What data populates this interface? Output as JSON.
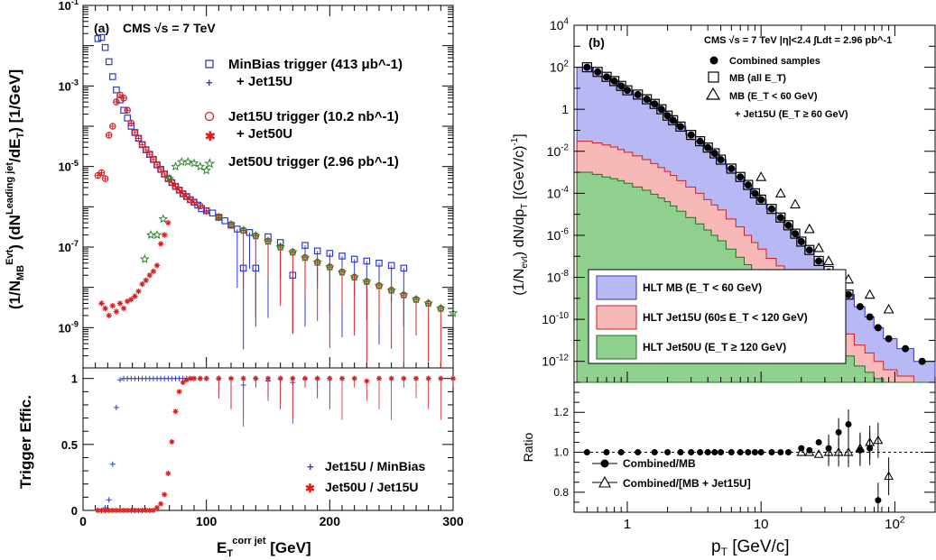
{
  "chart_data": [
    {
      "id": "a",
      "type": "scatter",
      "panel_label": "(a)",
      "experiment_label": "CMS  √s = 7 TeV",
      "xlabel": "E_T^corr jet [GeV]",
      "xlim": [
        0,
        300
      ],
      "x_ticks": [
        0,
        100,
        200,
        300
      ],
      "top": {
        "ylabel": "(1/N_MB^Evt) (dN^Leading jet/dE_T)  [1/GeV]",
        "yscale": "log",
        "ylim": [
          1e-10,
          0.1
        ],
        "y_tick_labels": [
          "10^-1",
          "10^-3",
          "10^-5",
          "10^-7",
          "10^-9"
        ],
        "legend_text": [
          "MinBias trigger (413 μb^-1)",
          "+ Jet15U",
          "Jet15U trigger (10.2 nb^-1)",
          "+ Jet50U",
          "Jet50U trigger (2.96 pb^-1)"
        ],
        "series": [
          {
            "name": "MinBias trigger",
            "marker": "open-square",
            "color": "#2b3bd9",
            "x": [
              12,
              15,
              18,
              21,
              24,
              27,
              30,
              33,
              36,
              39,
              42,
              45,
              48,
              51,
              54,
              57,
              60,
              63,
              66,
              69,
              72,
              75,
              78,
              81,
              84,
              87,
              90,
              93,
              96,
              100,
              105,
              110,
              115,
              120,
              125,
              130,
              135,
              140,
              150,
              160,
              170,
              180,
              190,
              200,
              210,
              220,
              230,
              240,
              250,
              260
            ],
            "y": [
              0.015,
              0.016,
              0.009,
              0.004,
              0.0017,
              0.0008,
              0.00045,
              0.00025,
              0.00016,
              0.0001,
              7e-05,
              5e-05,
              3.5e-05,
              2.6e-05,
              2e-05,
              1.5e-05,
              1.1e-05,
              8.5e-06,
              6.5e-06,
              5e-06,
              4e-06,
              3.2e-06,
              2.6e-06,
              2.1e-06,
              1.8e-06,
              1.5e-06,
              1.3e-06,
              1.1e-06,
              9e-07,
              8e-07,
              7e-07,
              5.5e-07,
              4.5e-07,
              3.5e-07,
              2.8e-07,
              3e-08,
              2.3e-07,
              3e-08,
              1.8e-07,
              1.3e-07,
              2e-08,
              1.1e-07,
              8e-08,
              7e-08,
              6e-08,
              5e-08,
              4.5e-08,
              4e-08,
              3.5e-08,
              3e-08
            ]
          },
          {
            "name": "Jet15U",
            "marker": "plus",
            "color": "#2b3bd9",
            "x": [
              100,
              110,
              120,
              130,
              140,
              150
            ],
            "y": [
              7.5e-07,
              5.2e-07,
              3.6e-07,
              2.6e-07,
              1.9e-07,
              1.4e-07
            ]
          },
          {
            "name": "Jet15U trigger",
            "marker": "open-circle-cross",
            "color": "#d62020",
            "x": [
              12,
              15,
              18,
              21,
              24,
              27,
              30,
              33,
              36,
              39,
              42,
              45,
              48,
              51,
              54,
              57,
              60,
              63,
              66,
              69,
              72,
              75,
              78,
              81,
              84,
              87,
              90,
              95,
              100,
              110,
              120,
              130,
              140,
              150,
              160,
              170,
              180,
              190,
              200,
              210,
              220,
              230,
              240,
              250,
              260,
              270,
              280,
              290
            ],
            "y": [
              6e-06,
              7e-06,
              5e-06,
              6e-05,
              0.0001,
              0.0004,
              0.0006,
              0.0005,
              0.00025,
              0.00012,
              7e-05,
              5e-05,
              3.5e-05,
              2.6e-05,
              2e-05,
              1.5e-05,
              1.1e-05,
              8.5e-06,
              6.5e-06,
              5e-06,
              4e-06,
              3.2e-06,
              2.6e-06,
              2.1e-06,
              1.8e-06,
              1.5e-06,
              1.3e-06,
              1.05e-06,
              8e-07,
              5.5e-07,
              3.6e-07,
              2.6e-07,
              1.9e-07,
              1.4e-07,
              1e-07,
              7.5e-08,
              5.5e-08,
              4.2e-08,
              3.2e-08,
              2.4e-08,
              1.8e-08,
              1.4e-08,
              1.1e-08,
              8.5e-09,
              6.5e-09,
              5e-09,
              4e-09,
              3e-09
            ]
          },
          {
            "name": "Jet50U",
            "marker": "asterisk",
            "color": "#d62020",
            "x": [
              15,
              18,
              21,
              24,
              27,
              30,
              33,
              36,
              39,
              42,
              45,
              48,
              51,
              54,
              57,
              60,
              63,
              66,
              69
            ],
            "y": [
              4e-09,
              3e-09,
              2e-09,
              3.5e-09,
              2.5e-09,
              4e-09,
              3e-09,
              4.5e-09,
              5e-09,
              6e-09,
              8e-09,
              1.2e-08,
              1.5e-08,
              2e-08,
              2.5e-08,
              3.5e-08,
              1.2e-07,
              2e-07,
              4e-07
            ]
          },
          {
            "name": "Jet50U trigger",
            "marker": "star",
            "color": "#2a8a2a",
            "x": [
              50,
              55,
              60,
              65,
              70,
              75,
              80,
              85,
              90,
              95,
              100,
              110,
              120,
              130,
              140,
              150,
              160,
              170,
              180,
              190,
              200,
              210,
              220,
              230,
              240,
              250,
              260,
              270,
              280,
              290,
              300
            ],
            "y": [
              5e-08,
              2e-07,
              2e-07,
              5e-07,
              5e-06,
              1e-05,
              1.3e-05,
              1.3e-05,
              1.2e-05,
              1e-05,
              8e-06,
              5.5e-07,
              3.6e-07,
              2.6e-07,
              1.9e-07,
              1.4e-07,
              1e-07,
              7.5e-08,
              5.5e-08,
              4.2e-08,
              3.2e-08,
              2.4e-08,
              1.8e-08,
              1.4e-08,
              1.1e-08,
              8.5e-09,
              6.5e-09,
              5e-09,
              4e-09,
              3e-09,
              2.3e-09
            ]
          }
        ]
      },
      "bottom": {
        "ylabel": "Trigger  Effic.",
        "ylim": [
          0,
          1.08
        ],
        "y_ticks": [
          0,
          0.5,
          1
        ],
        "legend_text": [
          "Jet15U / MinBias",
          "Jet50U / Jet15U"
        ],
        "series": [
          {
            "name": "Jet15U / MinBias",
            "marker": "plus",
            "color": "#2b3bd9",
            "x": [
              12,
              15,
              18,
              21,
              24,
              27,
              30,
              33,
              36,
              39,
              42,
              45,
              48,
              51,
              54,
              57,
              60,
              63,
              66,
              69,
              72,
              75,
              78,
              81,
              84,
              87,
              90,
              95,
              100,
              110,
              120,
              130,
              140,
              150,
              160,
              170,
              180,
              190,
              200
            ],
            "y": [
              0.0,
              0.0,
              0.02,
              0.08,
              0.35,
              0.78,
              0.99,
              1.0,
              1.0,
              1.0,
              1.0,
              1.0,
              1.0,
              1.0,
              1.0,
              1.0,
              1.0,
              1.0,
              1.0,
              1.0,
              1.0,
              1.0,
              1.0,
              1.0,
              1.0,
              1.0,
              1.0,
              1.0,
              1.0,
              1.0,
              1.0,
              0.95,
              1.0,
              0.98,
              1.0,
              0.97,
              1.0,
              1.0,
              1.0
            ]
          },
          {
            "name": "Jet50U / Jet15U",
            "marker": "asterisk",
            "color": "#d62020",
            "x": [
              12,
              15,
              18,
              21,
              24,
              27,
              30,
              33,
              36,
              39,
              42,
              45,
              48,
              51,
              54,
              57,
              60,
              63,
              66,
              69,
              72,
              75,
              78,
              81,
              84,
              87,
              90,
              95,
              100,
              110,
              120,
              130,
              140,
              150,
              160,
              170,
              180,
              190,
              200,
              210,
              220,
              230,
              240,
              250,
              260,
              270,
              280,
              290,
              300
            ],
            "y": [
              0.0,
              0.0,
              0.0,
              0.0,
              0.0,
              0.0,
              0.0,
              0.0,
              0.0,
              0.0,
              0.0,
              0.0,
              0.0,
              0.0,
              0.0,
              0.0,
              0.02,
              0.05,
              0.12,
              0.28,
              0.52,
              0.75,
              0.9,
              0.97,
              0.99,
              1.0,
              1.0,
              1.0,
              1.0,
              1.0,
              1.0,
              1.0,
              1.0,
              1.0,
              1.0,
              1.0,
              1.0,
              1.0,
              1.0,
              1.0,
              1.0,
              0.98,
              1.0,
              1.0,
              1.0,
              1.0,
              1.0,
              1.0,
              1.0
            ]
          }
        ]
      }
    },
    {
      "id": "b",
      "type": "area",
      "panel_label": "(b)",
      "experiment_label": "CMS  √s = 7 TeV  |η|<2.4  ∫Ldt = 2.96 pb^-1",
      "xlabel": "p_T [GeV/c]",
      "xscale": "log",
      "xlim": [
        0.4,
        200
      ],
      "x_tick_labels": [
        "1",
        "10",
        "10^2"
      ],
      "top": {
        "ylabel": "(1/N_evt) dN/dp_T [(GeV/c)^-1]",
        "yscale": "log",
        "ylim": [
          1e-13,
          10000.0
        ],
        "y_tick_labels": [
          "10^4",
          "10^2",
          "1",
          "10^-2",
          "10^-4",
          "10^-6",
          "10^-8",
          "10^-10",
          "10^-12"
        ],
        "legend_text": [
          "Combined samples",
          "MB (all E_T)",
          "MB (E_T < 60 GeV)",
          "+ Jet15U (E_T ≥ 60 GeV)"
        ],
        "fill_legend": [
          {
            "label": "HLT MB (E_T < 60 GeV)",
            "color": "#b8b8f5",
            "edge": "#3333cc"
          },
          {
            "label": "HLT Jet15U (60≤ E_T < 120 GeV)",
            "color": "#f7b8b8",
            "edge": "#cc2222"
          },
          {
            "label": "HLT Jet50U (E_T ≥ 120 GeV)",
            "color": "#8fd08f",
            "edge": "#207020"
          }
        ],
        "pt": [
          0.5,
          0.6,
          0.7,
          0.8,
          0.9,
          1.0,
          1.2,
          1.4,
          1.6,
          1.8,
          2.0,
          2.2,
          2.5,
          3.0,
          3.5,
          4.0,
          4.5,
          5.0,
          6.0,
          7.0,
          8.0,
          9.0,
          10,
          12,
          14,
          16,
          18,
          20,
          23,
          27,
          32,
          38,
          45,
          55,
          65,
          75,
          90,
          120,
          160
        ],
        "combined": [
          100,
          60,
          35,
          22,
          13,
          8,
          5,
          3,
          1.8,
          1,
          0.5,
          0.3,
          0.15,
          0.06,
          0.03,
          0.015,
          0.008,
          0.004,
          0.0015,
          0.0006,
          0.00025,
          0.0001,
          5e-05,
          1.8e-05,
          7e-06,
          3e-06,
          1.2e-06,
          5e-07,
          2e-07,
          6e-08,
          1.8e-08,
          5e-09,
          1.5e-09,
          4e-10,
          1.3e-10,
          4e-11,
          1.2e-11,
          4e-12,
          1e-12
        ],
        "mb_all": [
          100,
          60,
          35,
          22,
          13,
          8,
          5,
          3,
          1.8,
          1,
          0.5,
          0.3,
          0.15,
          0.06,
          0.03,
          0.015,
          0.008,
          0.004,
          0.0015,
          0.0006,
          0.00025,
          0.0001,
          5e-05,
          1.8e-05,
          7e-06,
          3e-06,
          1.2e-06,
          5e-07,
          2e-07,
          6e-08,
          2e-08,
          6e-09,
          1.5e-09
        ],
        "mb_jet15": [
          0.0006,
          0.0001,
          3e-05,
          2e-06,
          2.5e-07,
          6e-08,
          8e-09,
          1.5e-09,
          3e-10
        ],
        "mb_jet15_pt": [
          10,
          14,
          18,
          23,
          27,
          32,
          45,
          65,
          90
        ],
        "hlt_mb": [
          100,
          60,
          35,
          22,
          13,
          8,
          5,
          3,
          1.8,
          1,
          0.5,
          0.3,
          0.15,
          0.06,
          0.03,
          0.015,
          0.008,
          0.004,
          0.0015,
          0.0006,
          0.00025,
          0.0001,
          5e-05,
          1.8e-05,
          7e-06,
          3e-06,
          1.2e-06,
          5e-07,
          2e-07,
          6e-08,
          1.8e-08,
          5e-09,
          1.5e-09,
          4e-10,
          1.3e-10,
          4e-11,
          1.2e-11,
          4e-12,
          1e-12
        ],
        "hlt_jet15": [
          0.03,
          0.025,
          0.02,
          0.016,
          0.012,
          0.009,
          0.006,
          0.004,
          0.0026,
          0.0017,
          0.0011,
          0.0007,
          0.0004,
          0.0002,
          0.0001,
          5e-05,
          2.8e-05,
          1.6e-05,
          6e-06,
          2.5e-06,
          1e-06,
          4.5e-07,
          2.2e-07,
          8e-08,
          3.5e-08,
          1.6e-08,
          7e-09,
          3.5e-09,
          1.5e-09,
          5e-10,
          1.8e-10,
          6e-11,
          2e-11,
          6e-12,
          2.5e-12,
          1e-12,
          4e-13,
          2e-13,
          1e-13
        ],
        "hlt_jet50": [
          0.001,
          0.0008,
          0.0006,
          0.0005,
          0.0004,
          0.0003,
          0.0002,
          0.00014,
          9e-05,
          6e-05,
          4e-05,
          2.5e-05,
          1.4e-05,
          7e-06,
          3.5e-06,
          1.8e-06,
          1e-06,
          5.5e-07,
          2.2e-07,
          9e-08,
          4e-08,
          1.8e-08,
          9e-09,
          3.5e-09,
          1.5e-09,
          7e-10,
          3.5e-10,
          1.8e-10,
          8e-11,
          3e-11,
          1.2e-11,
          4.5e-12,
          1.8e-12,
          6e-13,
          3e-13,
          1.5e-13,
          1e-13,
          1e-13,
          1e-13
        ]
      },
      "bottom": {
        "ylabel": "Ratio",
        "ylim": [
          0.7,
          1.35
        ],
        "y_ticks": [
          0.8,
          1.0,
          1.2
        ],
        "y_tick_labels": [
          "0.8",
          "1.0",
          "1.2"
        ],
        "legend_text": [
          "Combined/MB",
          "Combined/[MB + Jet15U]"
        ],
        "series": [
          {
            "name": "Combined/MB",
            "marker": "filled-circle",
            "x": [
              0.5,
              0.7,
              0.9,
              1.2,
              1.6,
              2.0,
              2.5,
              3.0,
              3.5,
              4.0,
              4.5,
              5.0,
              6.0,
              7.0,
              8.0,
              9.0,
              10,
              12,
              14,
              16,
              20,
              23,
              27,
              32,
              38,
              45,
              55,
              65,
              75
            ],
            "y": [
              1.0,
              1.0,
              1.0,
              1.0,
              1.0,
              1.0,
              1.0,
              1.0,
              1.0,
              1.0,
              1.0,
              1.0,
              1.0,
              1.0,
              1.0,
              1.0,
              1.0,
              1.0,
              1.0,
              1.0,
              1.02,
              1.01,
              1.05,
              1.02,
              1.1,
              1.14,
              1.01,
              1.02,
              0.76
            ]
          },
          {
            "name": "Combined/[MB + Jet15U]",
            "marker": "open-triangle",
            "x": [
              20,
              23,
              27,
              32,
              38,
              45,
              55,
              65,
              75,
              90
            ],
            "y": [
              1.0,
              1.0,
              0.99,
              1.0,
              1.0,
              1.0,
              1.02,
              1.05,
              1.06,
              0.88
            ]
          }
        ]
      }
    }
  ]
}
